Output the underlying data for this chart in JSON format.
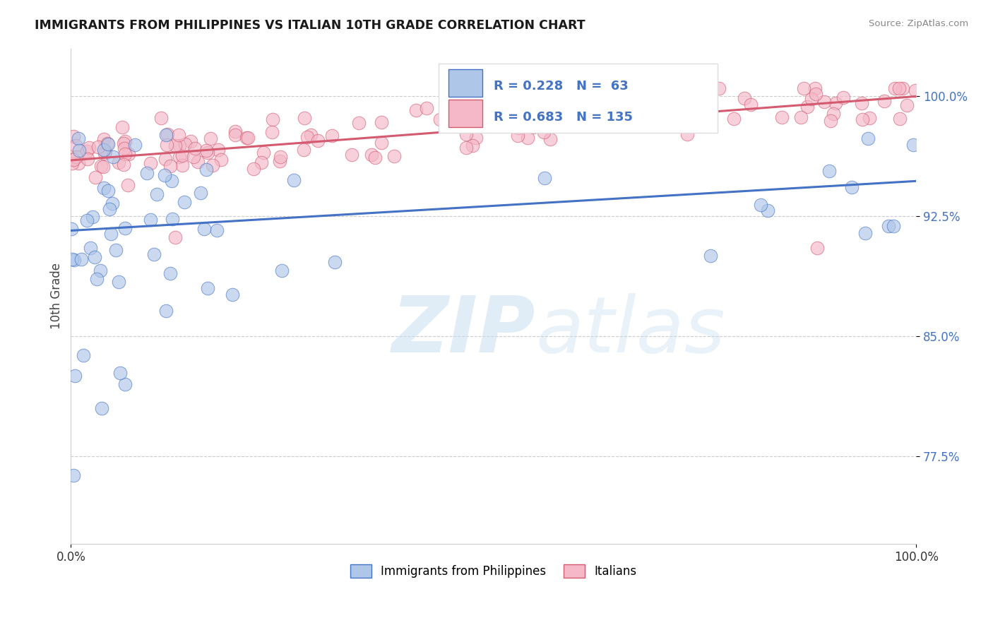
{
  "title": "IMMIGRANTS FROM PHILIPPINES VS ITALIAN 10TH GRADE CORRELATION CHART",
  "source": "Source: ZipAtlas.com",
  "ylabel": "10th Grade",
  "legend_labels": [
    "Immigrants from Philippines",
    "Italians"
  ],
  "r_philippines": 0.228,
  "n_philippines": 63,
  "r_italians": 0.683,
  "n_italians": 135,
  "color_philippines": "#aec6e8",
  "color_italians": "#f4b8c8",
  "line_color_philippines": "#4472c4",
  "line_color_italians": "#d45a70",
  "xlim": [
    0.0,
    1.0
  ],
  "ylim": [
    0.72,
    1.03
  ],
  "ytick_labels": [
    "77.5%",
    "85.0%",
    "92.5%",
    "100.0%"
  ],
  "ytick_values": [
    0.775,
    0.85,
    0.925,
    1.0
  ],
  "xtick_labels": [
    "0.0%",
    "100.0%"
  ],
  "xtick_values": [
    0.0,
    1.0
  ],
  "background_color": "#ffffff",
  "watermark_zip": "ZIP",
  "watermark_atlas": "atlas",
  "watermark_color_zip": "#c8dff0",
  "watermark_color_atlas": "#c8dff0"
}
